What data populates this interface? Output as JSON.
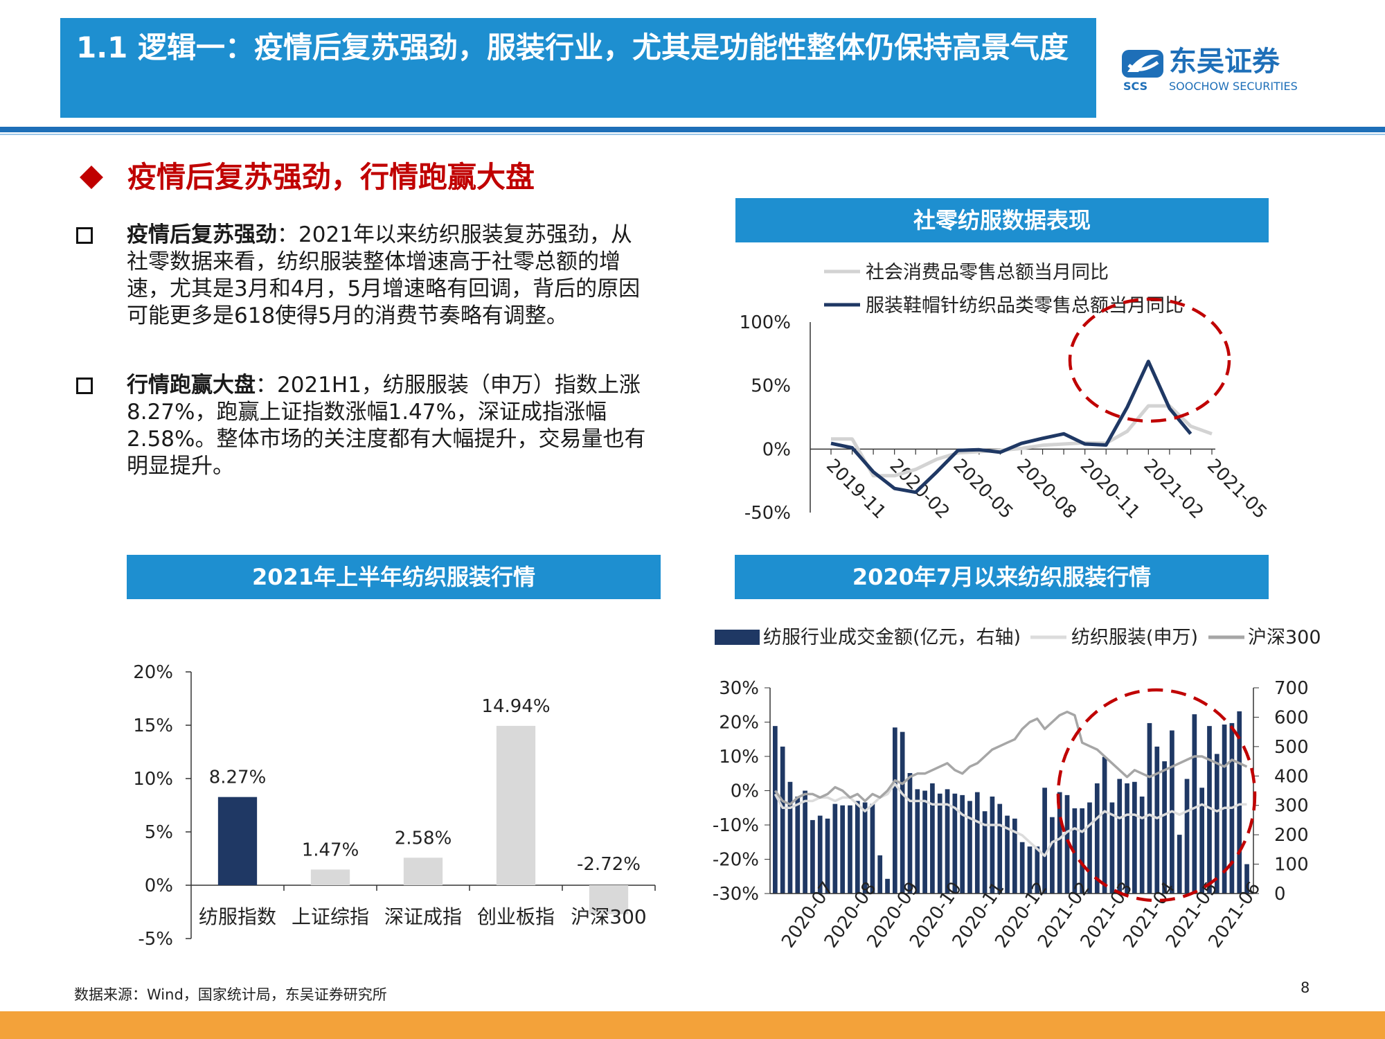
{
  "header": {
    "title": "1.1 逻辑一：疫情后复苏强劲，服装行业，尤其是功能性整体仍保持高景气度",
    "logo_cn": "东吴证券",
    "logo_en": "SOOCHOW SECURITIES",
    "logo_mark": "SCS",
    "colors": {
      "title_bar": "#1e8fd0",
      "rule": "#1e6fb8",
      "accent_red": "#c00000",
      "footer_band": "#f3a23a"
    }
  },
  "section_heading": "疫情后复苏强劲，行情跑赢大盘",
  "bullets": [
    {
      "bold": "疫情后复苏强劲",
      "text": "：2021年以来纺织服装复苏强劲，从社零数据来看，纺织服装整体增速高于社零总额的增速，尤其是3月和4月，5月增速略有回调，背后的原因可能更多是618使得5月的消费节奏略有调整。"
    },
    {
      "bold": "行情跑赢大盘",
      "text": "：2021H1，纺服服装（申万）指数上涨8.27%，跑赢上证指数涨幅1.47%，深证成指涨幅2.58%。整体市场的关注度都有大幅提升，交易量也有明显提升。"
    }
  ],
  "panels": {
    "retail": {
      "title": "社零纺服数据表现"
    },
    "h1": {
      "title": "2021年上半年纺织服装行情"
    },
    "since2020": {
      "title": "2020年7月以来纺织服装行情"
    }
  },
  "chart_data": [
    {
      "type": "line",
      "title": "社零纺服数据表现",
      "x": [
        "2019-11",
        "2019-12",
        "2020-01",
        "2020-02",
        "2020-03",
        "2020-04",
        "2020-05",
        "2020-06",
        "2020-07",
        "2020-08",
        "2020-09",
        "2020-10",
        "2020-11",
        "2020-12",
        "2021-01",
        "2021-02",
        "2021-03",
        "2021-04",
        "2021-05"
      ],
      "x_tick_labels": [
        "2019-11",
        "2020-02",
        "2020-05",
        "2020-08",
        "2020-11",
        "2021-02",
        "2021-05"
      ],
      "y_tick_labels": [
        "100%",
        "50%",
        "0%",
        "-50%"
      ],
      "ylim": [
        -50,
        100
      ],
      "series": [
        {
          "name": "社会消费品零售总额当月同比",
          "color": "#d3d3d3",
          "values": [
            8,
            8,
            -21,
            -21,
            -16,
            -8,
            -3,
            -2,
            -1,
            0.5,
            3,
            4,
            5,
            4.6,
            14,
            34,
            34,
            18,
            12
          ]
        },
        {
          "name": "服装鞋帽针纺织品类零售总额当月同比",
          "color": "#1f3864",
          "values": [
            4.5,
            1,
            -18,
            -31,
            -34,
            -18,
            -1,
            -0.5,
            -2.5,
            4.5,
            8.5,
            12,
            4,
            3.2,
            33,
            69,
            32,
            12,
            null
          ]
        }
      ],
      "annotation": "dashed red ellipse around 2021-02 to 2021-05 peak"
    },
    {
      "type": "bar",
      "title": "2021年上半年纺织服装行情",
      "categories": [
        "纺服指数",
        "上证综指",
        "深证成指",
        "创业板指",
        "沪深300"
      ],
      "values": [
        8.27,
        1.47,
        2.58,
        14.94,
        -2.72
      ],
      "data_labels": [
        "8.27%",
        "1.47%",
        "2.58%",
        "14.94%",
        "-2.72%"
      ],
      "y_tick_labels": [
        "20%",
        "15%",
        "10%",
        "5%",
        "0%",
        "-5%"
      ],
      "ylim": [
        -5,
        20
      ],
      "colors": [
        "#1f3864",
        "#d9d9d9",
        "#d9d9d9",
        "#d9d9d9",
        "#d9d9d9"
      ]
    },
    {
      "type": "bar",
      "title": "2020年7月以来纺织服装行情",
      "legend": [
        "纺服行业成交金额(亿元，右轴)",
        "纺织服装(申万)",
        "沪深300"
      ],
      "x_tick_labels": [
        "2020-07",
        "2020-08",
        "2020-09",
        "2020-10",
        "2020-11",
        "2020-12",
        "2021-02",
        "2021-03",
        "2021-04",
        "2021-05",
        "2021-06"
      ],
      "y_left_tick_labels": [
        "30%",
        "20%",
        "10%",
        "0%",
        "-10%",
        "-20%",
        "-30%"
      ],
      "y_right_tick_labels": [
        "700",
        "600",
        "500",
        "400",
        "300",
        "200",
        "100",
        "0"
      ],
      "ylim_left": [
        -30,
        30
      ],
      "ylim_right": [
        0,
        700
      ],
      "series": [
        {
          "name": "纺服行业成交金额(亿元，右轴)",
          "axis": "right",
          "color": "#1f3864",
          "values": [
            570,
            500,
            380,
            330,
            350,
            250,
            265,
            255,
            305,
            300,
            300,
            315,
            310,
            305,
            130,
            50,
            565,
            550,
            410,
            355,
            350,
            375,
            340,
            355,
            340,
            335,
            315,
            345,
            280,
            330,
            305,
            265,
            255,
            175,
            160,
            160,
            360,
            260,
            345,
            335,
            290,
            290,
            310,
            375,
            465,
            310,
            390,
            375,
            380,
            330,
            580,
            500,
            450,
            555,
            200,
            390,
            610,
            360,
            570,
            475,
            575,
            580,
            620,
            100
          ]
        },
        {
          "name": "纺织服装(申万)",
          "axis": "left",
          "color": "#dcdcdc",
          "values": [
            -1,
            -5,
            -5,
            -4,
            -3,
            -3,
            -2,
            -2,
            -3,
            -2,
            -2,
            -4,
            -6,
            -4,
            -2,
            -1,
            2,
            -1,
            -3,
            -3,
            -3,
            -4,
            -4,
            -4,
            -5,
            -7,
            -8,
            -9,
            -10,
            -10,
            -10,
            -11,
            -12,
            -13,
            -15,
            -17,
            -19,
            -15,
            -14,
            -12,
            -11,
            -12,
            -10,
            -8,
            -6,
            -7,
            -8,
            -7,
            -7,
            -8,
            -7,
            -8,
            -7,
            -6,
            -7,
            -6,
            -5,
            -4,
            -5,
            -6,
            -5,
            -5,
            -4,
            -4
          ]
        },
        {
          "name": "沪深300",
          "axis": "left",
          "color": "#a6a6a6",
          "values": [
            0,
            -3,
            -4,
            -2,
            -1,
            -1,
            -2,
            -1,
            1,
            0,
            -2,
            -1,
            -3,
            -1,
            -2,
            0,
            3,
            2,
            4,
            5,
            5,
            6,
            7,
            8,
            6,
            5,
            7,
            8,
            10,
            12,
            13,
            14,
            15,
            18,
            20,
            21,
            18,
            20,
            22,
            23,
            22,
            14,
            13,
            12,
            10,
            8,
            6,
            4,
            6,
            5,
            4,
            5,
            6,
            7,
            8,
            9,
            10,
            10,
            9,
            8,
            7,
            9,
            8,
            7
          ]
        }
      ],
      "annotation": "dashed red ellipse around 2021-03 to 2021-06 region"
    }
  ],
  "footer": {
    "source": "数据来源：Wind，国家统计局，东吴证券研究所",
    "page": "8"
  }
}
